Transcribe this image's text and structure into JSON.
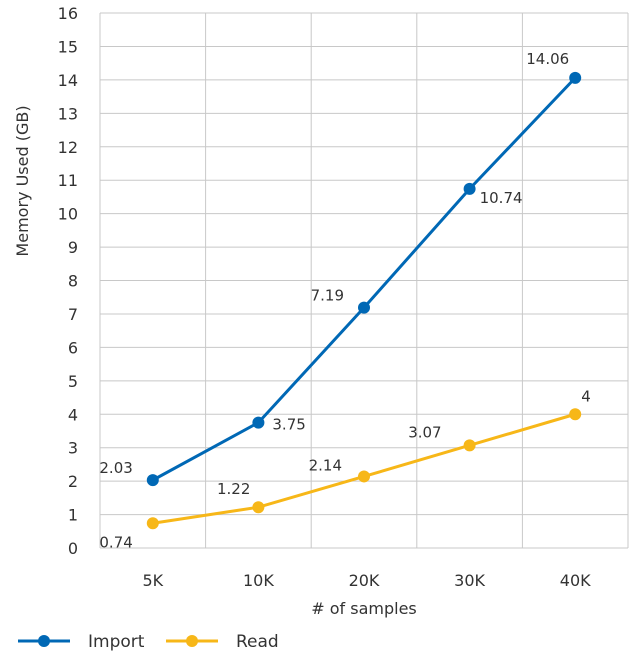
{
  "chart_data": {
    "type": "line",
    "title": "",
    "xlabel": "# of samples",
    "ylabel": "Memory Used (GB)",
    "categories": [
      "5K",
      "10K",
      "20K",
      "30K",
      "40K"
    ],
    "ylim": [
      0,
      16
    ],
    "yticks": [
      "0",
      "1",
      "2",
      "3",
      "4",
      "5",
      "6",
      "7",
      "8",
      "9",
      "10",
      "11",
      "12",
      "13",
      "14",
      "15",
      "16"
    ],
    "grid": true,
    "legend_position": "bottom-left",
    "series": [
      {
        "name": "Import",
        "color": "#0068b5",
        "values": [
          2.03,
          3.75,
          7.19,
          10.74,
          14.06
        ],
        "labels": [
          "2.03",
          "3.75",
          "7.19",
          "10.74",
          "14.06"
        ]
      },
      {
        "name": "Read",
        "color": "#f7b718",
        "values": [
          0.74,
          1.22,
          2.14,
          3.07,
          4
        ],
        "labels": [
          "0.74",
          "1.22",
          "2.14",
          "3.07",
          "4"
        ]
      }
    ]
  }
}
